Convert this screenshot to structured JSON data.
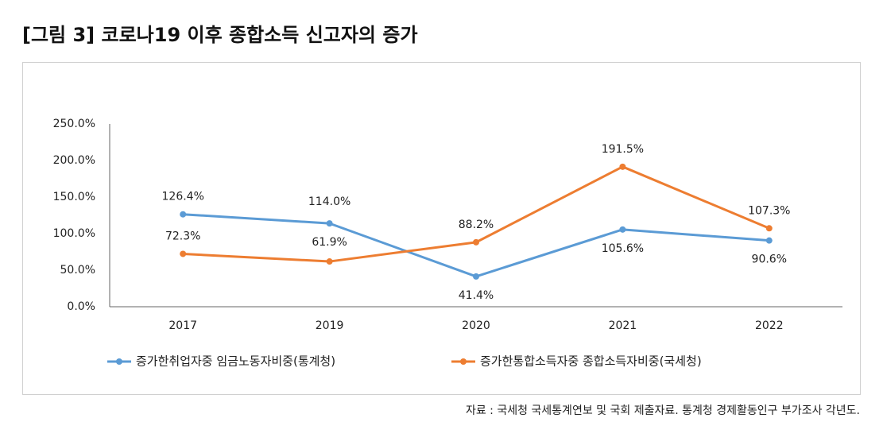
{
  "chart_data": {
    "type": "line",
    "title": "[그림 3] 코로나19 이후 종합소득 신고자의 증가",
    "source": "자료 : 국세청 국세통계연보 및 국회 제출자료. 통계청 경제활동인구 부가조사 각년도.",
    "categories": [
      "2017",
      "2019",
      "2020",
      "2021",
      "2022"
    ],
    "series": [
      {
        "name": "증가한취업자중 임금노동자비중(통계청)",
        "color": "#5b9bd5",
        "values": [
          126.4,
          114.0,
          41.4,
          105.6,
          90.6
        ],
        "value_labels": [
          "126.4%",
          "114.0%",
          "41.4%",
          "105.6%",
          "90.6%"
        ]
      },
      {
        "name": "증가한통합소득자중 종합소득자비중(국세청)",
        "color": "#ed7d31",
        "values": [
          72.3,
          61.9,
          88.2,
          191.5,
          107.3
        ],
        "value_labels": [
          "72.3%",
          "61.9%",
          "88.2%",
          "191.5%",
          "107.3%"
        ]
      }
    ],
    "ylim": [
      0,
      250
    ],
    "yticks": [
      {
        "value": 0,
        "label": "0.0%"
      },
      {
        "value": 50,
        "label": "50.0%"
      },
      {
        "value": 100,
        "label": "100.0%"
      },
      {
        "value": 150,
        "label": "150.0%"
      },
      {
        "value": 200,
        "label": "200.0%"
      },
      {
        "value": 250,
        "label": "250.0%"
      }
    ],
    "grid": false,
    "legend": "bottom"
  }
}
